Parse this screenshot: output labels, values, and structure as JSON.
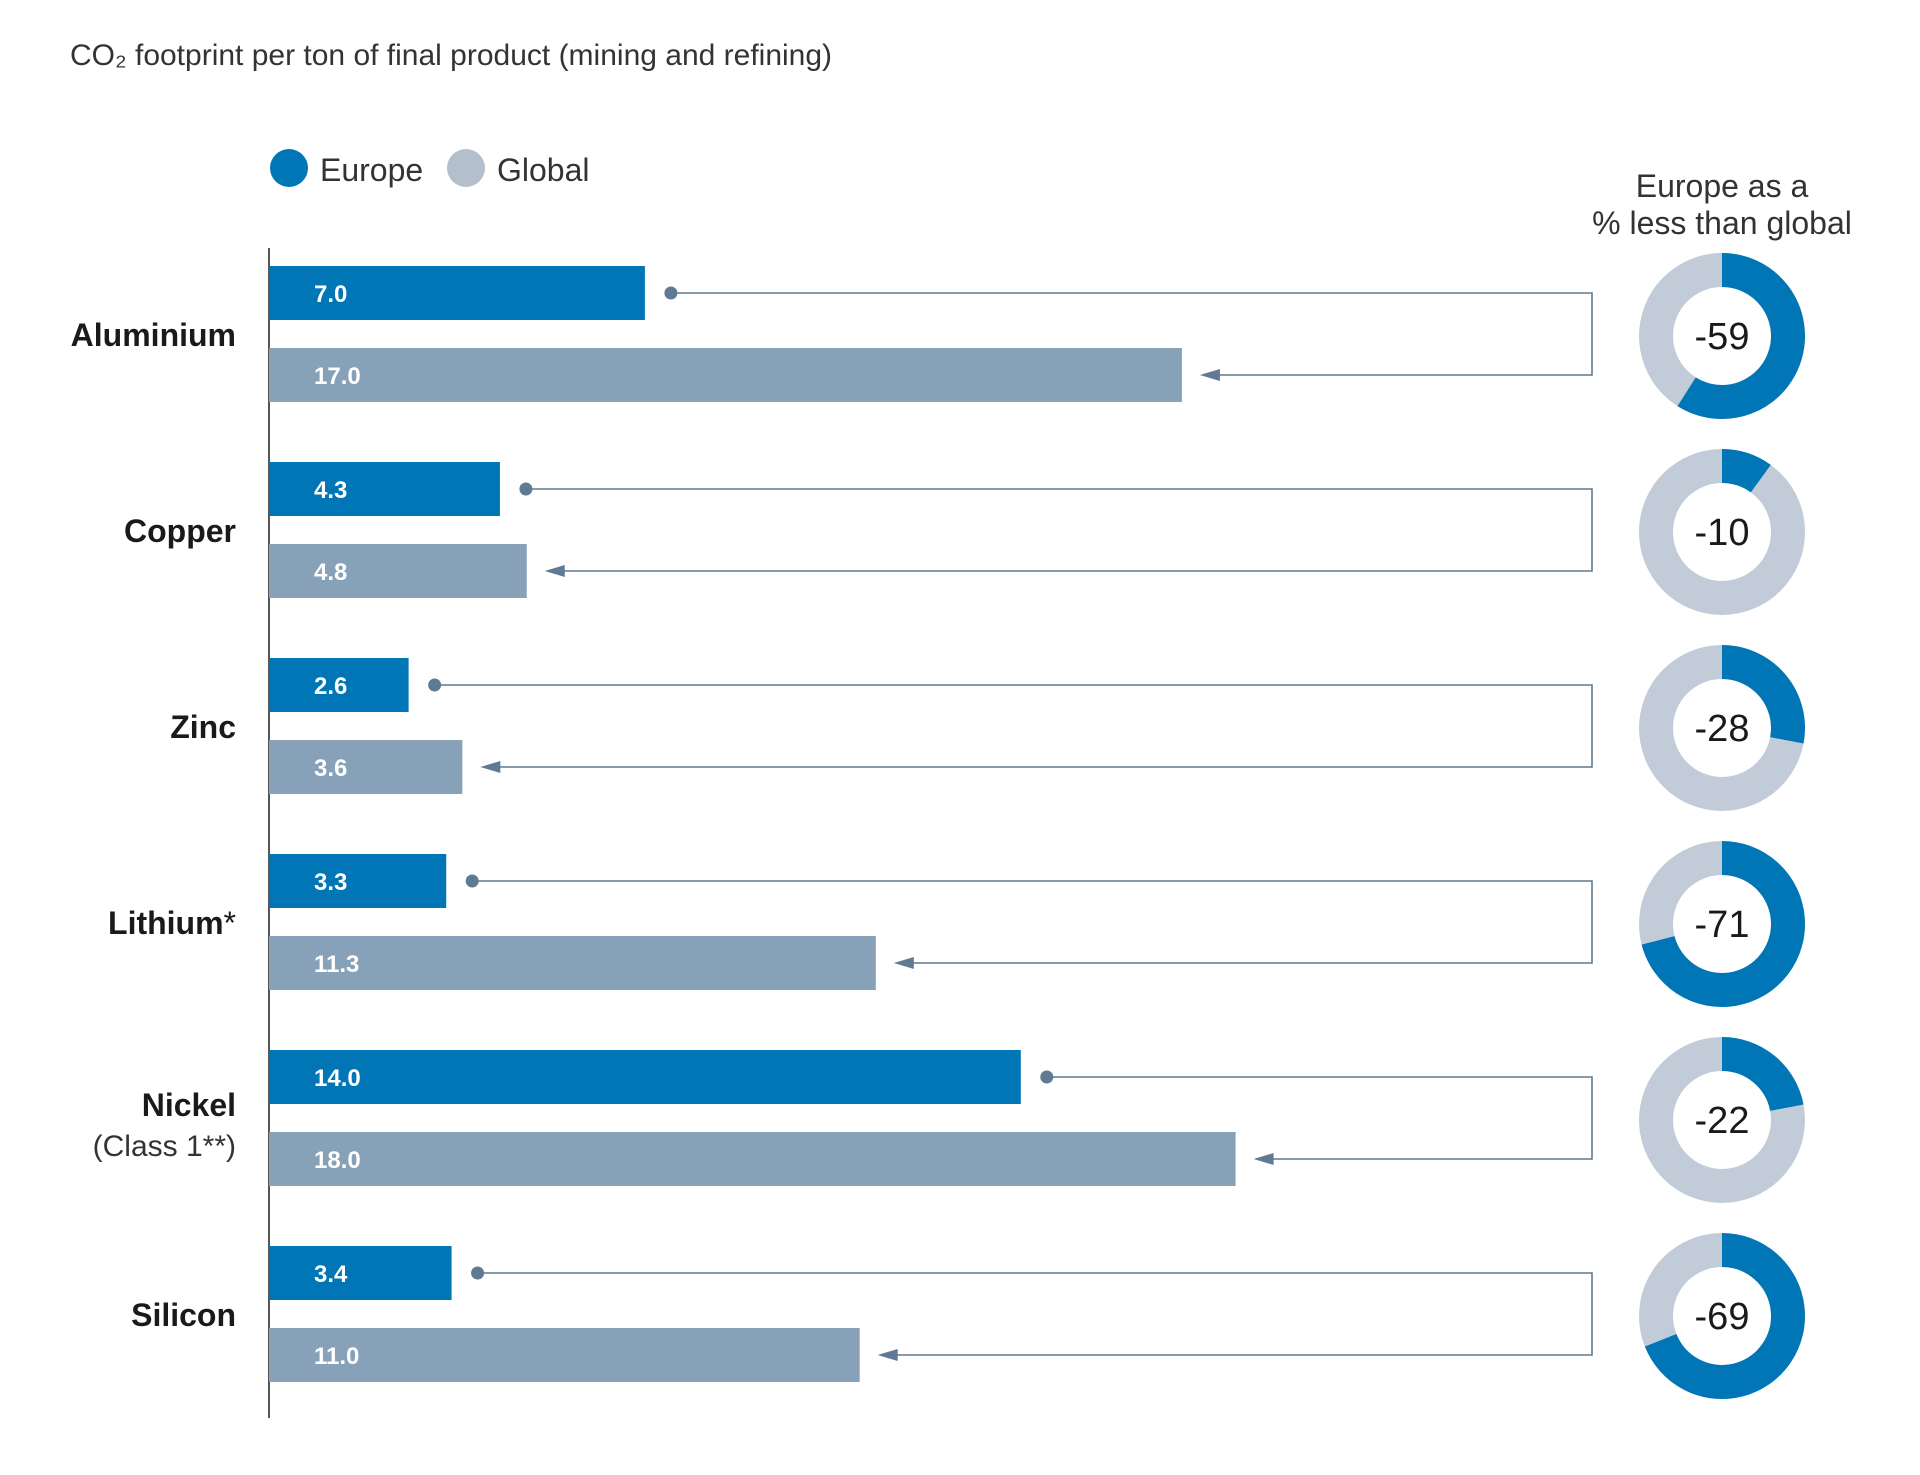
{
  "chart_data": {
    "type": "bar",
    "orientation": "horizontal",
    "title": "CO₂ footprint per ton of final product (mining and refining)",
    "categories": [
      "Aluminium",
      "Copper",
      "Zinc",
      "Lithium",
      "Nickel",
      "Silicon"
    ],
    "category_notes": [
      "",
      "",
      "",
      "*",
      "(Class 1**)",
      ""
    ],
    "series": [
      {
        "name": "Europe",
        "color": "#0076b6",
        "values": [
          7.0,
          4.3,
          2.6,
          3.3,
          14.0,
          3.4
        ],
        "labels": [
          "7.0",
          "4.3",
          "2.6",
          "3.3",
          "14.0",
          "3.4"
        ]
      },
      {
        "name": "Global",
        "color": "#87a2b8",
        "values": [
          17.0,
          4.8,
          3.6,
          11.3,
          18.0,
          11.0
        ],
        "labels": [
          "17.0",
          "4.8",
          "3.6",
          "11.3",
          "18.0",
          "11.0"
        ]
      }
    ],
    "xlim": [
      0,
      25
    ],
    "grid": false,
    "legend": "top-left",
    "comparison": {
      "title_lines": [
        "Europe as a",
        "% less than global"
      ],
      "values": [
        -59,
        -10,
        -28,
        -71,
        -22,
        -69
      ],
      "labels": [
        "-59",
        "-10",
        "-28",
        "-71",
        "-22",
        "-69"
      ],
      "ring_color": "#0076b6",
      "ring_track_color": "#c2ccd8"
    },
    "connector_color": "#5f7a92"
  }
}
